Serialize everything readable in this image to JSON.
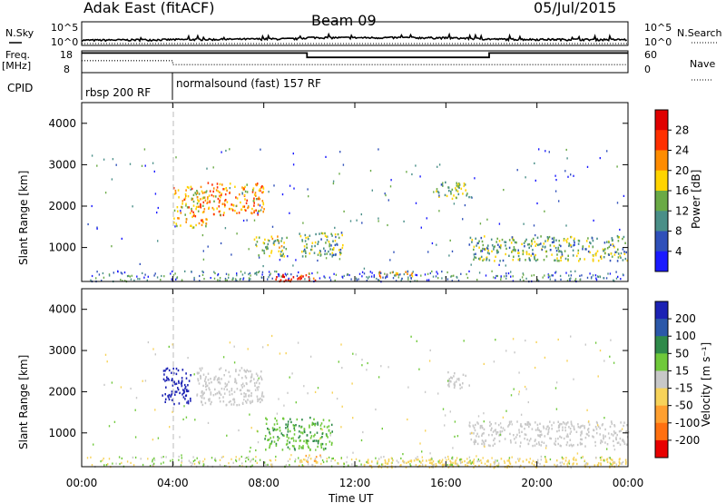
{
  "header": {
    "station": "Adak East (fitACF)",
    "beam": "Beam 09",
    "date": "05/Jul/2015"
  },
  "top_panel": {
    "left_label": "N.Sky",
    "left_ticks": [
      "10^5",
      "10^0"
    ],
    "right_label": "N.Search",
    "right_ticks": [
      "10^5",
      "10^0"
    ]
  },
  "freq_panel": {
    "left_label_line1": "Freq.",
    "left_label_line2": "[MHz]",
    "left_ticks": [
      "18",
      "8"
    ],
    "right_label": "Nave",
    "right_ticks": [
      "60",
      "0"
    ]
  },
  "cpid_panel": {
    "label": "CPID",
    "segments": [
      "rbsp 200 RF",
      "normalsound (fast) 157 RF"
    ]
  },
  "x_axis": {
    "label": "Time UT",
    "ticks": [
      "00:00",
      "04:00",
      "08:00",
      "12:00",
      "16:00",
      "20:00",
      "00:00"
    ]
  },
  "power_panel": {
    "ylabel": "Slant Range [km]",
    "yticks": [
      "1000",
      "2000",
      "3000",
      "4000"
    ],
    "cbar_label": "Power [dB]",
    "cbar_ticks": [
      "4",
      "8",
      "12",
      "16",
      "20",
      "24",
      "28"
    ],
    "cbar_colors": [
      "#1a1aff",
      "#2f50ba",
      "#4a8f88",
      "#6aaa46",
      "#ffd400",
      "#ff8c00",
      "#ff3000",
      "#e00000"
    ]
  },
  "velocity_panel": {
    "ylabel": "Slant Range [km]",
    "yticks": [
      "1000",
      "2000",
      "3000",
      "4000"
    ],
    "cbar_label": "Velocity [m s⁻¹]",
    "cbar_ticks": [
      "200",
      "100",
      "50",
      "15",
      "-15",
      "-50",
      "-100",
      "-200"
    ],
    "cbar_colors": [
      "#1c22b4",
      "#2b58a9",
      "#2f8a4a",
      "#6fc93a",
      "#c8c8c8",
      "#f7d35a",
      "#ffa030",
      "#ff7010",
      "#e80000"
    ]
  },
  "chart_data": [
    {
      "type": "line",
      "title": "",
      "xlabel": "",
      "ylabel": "N.Sky",
      "x_range_hours": [
        0,
        24
      ],
      "ylim": [
        "10^0",
        "10^5"
      ],
      "log_scale": true,
      "series": [
        {
          "name": "N.Sky",
          "x": [
            0,
            2,
            4,
            6,
            8,
            9.5,
            10,
            12,
            14,
            16,
            18,
            20,
            22,
            24
          ],
          "values": [
            12,
            14,
            16,
            18,
            22,
            24,
            45,
            40,
            42,
            38,
            20,
            18,
            17,
            16
          ]
        }
      ]
    },
    {
      "type": "line",
      "title": "",
      "xlabel": "",
      "ylabel": "Freq. [MHz]",
      "ylim": [
        8,
        18
      ],
      "x_range_hours": [
        0,
        24
      ],
      "series": [
        {
          "name": "Freq.",
          "x": [
            0,
            9.9,
            9.9,
            17.9,
            17.9,
            24
          ],
          "values": [
            17,
            17,
            15,
            15,
            17,
            17
          ]
        },
        {
          "name": "Nave",
          "x": [
            0,
            4,
            4,
            24
          ],
          "values": [
            33,
            33,
            22,
            22
          ],
          "ylim": [
            0,
            60
          ]
        }
      ]
    },
    {
      "type": "heatmap",
      "title": "",
      "xlabel": "Time UT",
      "ylabel": "Slant Range [km]",
      "x_range_hours": [
        0,
        24
      ],
      "ylim": [
        180,
        4500
      ],
      "cbar_label": "Power [dB]",
      "cbar_range": [
        0,
        30
      ],
      "blobs": [
        {
          "t0": 4.0,
          "t1": 5.5,
          "r0": 1500,
          "r1": 2500,
          "value": 18
        },
        {
          "t0": 5.5,
          "t1": 8.0,
          "r0": 1800,
          "r1": 2600,
          "value": 20
        },
        {
          "t0": 7.5,
          "t1": 9.0,
          "r0": 800,
          "r1": 1300,
          "value": 14
        },
        {
          "t0": 9.5,
          "t1": 11.5,
          "r0": 800,
          "r1": 1400,
          "value": 12
        },
        {
          "t0": 8.5,
          "t1": 10.5,
          "r0": 200,
          "r1": 400,
          "value": 26
        },
        {
          "t0": 13.0,
          "t1": 14.5,
          "r0": 300,
          "r1": 450,
          "value": 22
        },
        {
          "t0": 15.5,
          "t1": 17.0,
          "r0": 2200,
          "r1": 2600,
          "value": 12
        },
        {
          "t0": 17.0,
          "t1": 24.0,
          "r0": 700,
          "r1": 1300,
          "value": 12
        }
      ]
    },
    {
      "type": "heatmap",
      "title": "",
      "xlabel": "Time UT",
      "ylabel": "Slant Range [km]",
      "x_range_hours": [
        0,
        24
      ],
      "ylim": [
        180,
        4500
      ],
      "cbar_label": "Velocity [m s⁻¹]",
      "cbar_range": [
        -200,
        200
      ],
      "blobs": [
        {
          "t0": 3.5,
          "t1": 4.8,
          "r0": 1700,
          "r1": 2600,
          "value": 180
        },
        {
          "t0": 5.0,
          "t1": 8.0,
          "r0": 1700,
          "r1": 2600,
          "value": 0
        },
        {
          "t0": 8.0,
          "t1": 11.0,
          "r0": 600,
          "r1": 1400,
          "value": 60
        },
        {
          "t0": 9.5,
          "t1": 10.5,
          "r0": 300,
          "r1": 500,
          "value": -60
        },
        {
          "t0": 16.0,
          "t1": 17.0,
          "r0": 2100,
          "r1": 2500,
          "value": 0
        },
        {
          "t0": 17.0,
          "t1": 24.0,
          "r0": 700,
          "r1": 1300,
          "value": 0
        },
        {
          "t0": 12.5,
          "t1": 24.0,
          "r0": 180,
          "r1": 400,
          "value": -40
        }
      ]
    }
  ]
}
